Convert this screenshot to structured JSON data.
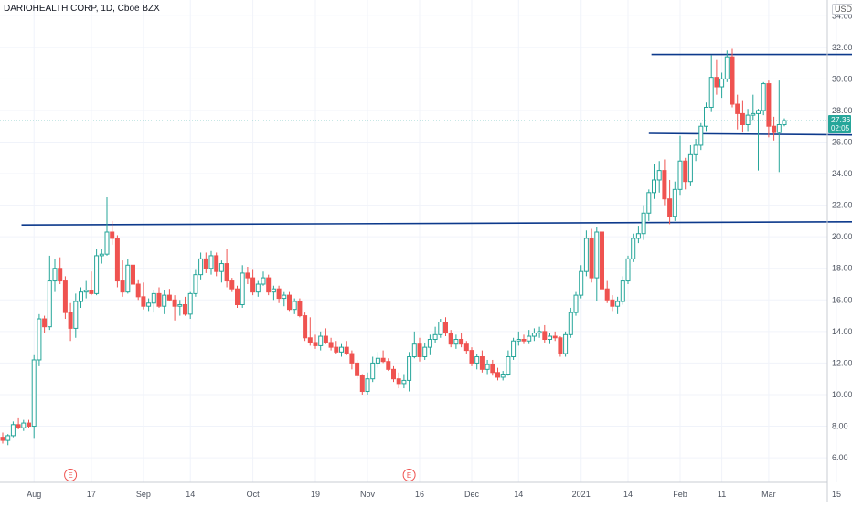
{
  "header": {
    "title": "DARIOHEALTH CORP, 1D, Cboe BZX",
    "currency_button": "USD"
  },
  "last_price": {
    "value": "27.36",
    "countdown": "02:05"
  },
  "colors": {
    "up": "#26a69a",
    "down": "#ef5350",
    "line": "#0d3a8c",
    "label_bg": "#26a69a",
    "event": "#ef5350"
  },
  "chart_data": {
    "type": "candlestick",
    "title": "DARIOHEALTH CORP, 1D, Cboe BZX",
    "xlabel": "",
    "ylabel": "USD",
    "ylim": [
      5.0,
      34.5
    ],
    "grid": true,
    "y_ticks": [
      "6.00",
      "8.00",
      "10.00",
      "12.00",
      "14.00",
      "16.00",
      "18.00",
      "20.00",
      "22.00",
      "24.00",
      "26.00",
      "28.00",
      "30.00",
      "32.00",
      "34.00"
    ],
    "x_ticks": [
      {
        "label": "Aug",
        "index": 6
      },
      {
        "label": "17",
        "index": 17
      },
      {
        "label": "Sep",
        "index": 27
      },
      {
        "label": "14",
        "index": 36
      },
      {
        "label": "Oct",
        "index": 48
      },
      {
        "label": "19",
        "index": 60
      },
      {
        "label": "Nov",
        "index": 70
      },
      {
        "label": "16",
        "index": 80
      },
      {
        "label": "Dec",
        "index": 90
      },
      {
        "label": "14",
        "index": 99
      },
      {
        "label": "2021",
        "index": 111
      },
      {
        "label": "14",
        "index": 120
      },
      {
        "label": "Feb",
        "index": 130
      },
      {
        "label": "11",
        "index": 138
      },
      {
        "label": "Mar",
        "index": 147
      },
      {
        "label": "15",
        "index": 160
      }
    ],
    "events": [
      {
        "label": "E",
        "index": 13
      },
      {
        "label": "E",
        "index": 78
      }
    ],
    "candles": [
      {
        "o": 7.3,
        "h": 7.6,
        "l": 6.9,
        "c": 7.1
      },
      {
        "o": 7.1,
        "h": 7.5,
        "l": 6.8,
        "c": 7.4
      },
      {
        "o": 7.4,
        "h": 8.3,
        "l": 7.3,
        "c": 8.1
      },
      {
        "o": 8.1,
        "h": 8.5,
        "l": 7.8,
        "c": 7.9
      },
      {
        "o": 7.9,
        "h": 8.4,
        "l": 7.7,
        "c": 8.2
      },
      {
        "o": 8.2,
        "h": 8.4,
        "l": 7.9,
        "c": 8.0
      },
      {
        "o": 8.0,
        "h": 12.5,
        "l": 7.2,
        "c": 12.2
      },
      {
        "o": 12.2,
        "h": 15.1,
        "l": 11.8,
        "c": 14.8
      },
      {
        "o": 14.8,
        "h": 15.0,
        "l": 13.9,
        "c": 14.3
      },
      {
        "o": 14.3,
        "h": 18.8,
        "l": 14.1,
        "c": 17.2
      },
      {
        "o": 17.2,
        "h": 18.6,
        "l": 16.5,
        "c": 18.0
      },
      {
        "o": 18.0,
        "h": 18.7,
        "l": 17.0,
        "c": 17.2
      },
      {
        "o": 17.2,
        "h": 17.5,
        "l": 14.8,
        "c": 15.2
      },
      {
        "o": 15.2,
        "h": 15.8,
        "l": 13.4,
        "c": 14.2
      },
      {
        "o": 14.2,
        "h": 16.4,
        "l": 13.6,
        "c": 15.9
      },
      {
        "o": 15.9,
        "h": 16.8,
        "l": 15.5,
        "c": 16.5
      },
      {
        "o": 16.5,
        "h": 17.2,
        "l": 16.1,
        "c": 16.6
      },
      {
        "o": 16.6,
        "h": 17.8,
        "l": 16.3,
        "c": 16.4
      },
      {
        "o": 16.4,
        "h": 19.2,
        "l": 16.3,
        "c": 18.8
      },
      {
        "o": 18.8,
        "h": 19.2,
        "l": 18.3,
        "c": 18.9
      },
      {
        "o": 18.9,
        "h": 22.5,
        "l": 18.8,
        "c": 20.3
      },
      {
        "o": 20.3,
        "h": 21.0,
        "l": 19.5,
        "c": 19.9
      },
      {
        "o": 19.9,
        "h": 20.1,
        "l": 16.8,
        "c": 17.2
      },
      {
        "o": 17.2,
        "h": 18.5,
        "l": 16.2,
        "c": 16.5
      },
      {
        "o": 16.5,
        "h": 18.6,
        "l": 16.4,
        "c": 18.2
      },
      {
        "o": 18.2,
        "h": 18.4,
        "l": 16.8,
        "c": 17.0
      },
      {
        "o": 17.0,
        "h": 17.3,
        "l": 16.0,
        "c": 16.2
      },
      {
        "o": 16.2,
        "h": 17.1,
        "l": 15.4,
        "c": 15.6
      },
      {
        "o": 15.6,
        "h": 16.1,
        "l": 15.3,
        "c": 15.8
      },
      {
        "o": 15.8,
        "h": 16.6,
        "l": 15.2,
        "c": 16.4
      },
      {
        "o": 16.4,
        "h": 16.8,
        "l": 15.5,
        "c": 15.6
      },
      {
        "o": 15.6,
        "h": 16.6,
        "l": 15.1,
        "c": 16.3
      },
      {
        "o": 16.3,
        "h": 16.7,
        "l": 15.9,
        "c": 16.0
      },
      {
        "o": 16.0,
        "h": 16.3,
        "l": 14.7,
        "c": 15.6
      },
      {
        "o": 15.6,
        "h": 16.0,
        "l": 15.0,
        "c": 15.7
      },
      {
        "o": 15.7,
        "h": 16.2,
        "l": 15.0,
        "c": 15.1
      },
      {
        "o": 15.1,
        "h": 16.5,
        "l": 14.8,
        "c": 16.4
      },
      {
        "o": 16.4,
        "h": 17.9,
        "l": 16.2,
        "c": 17.6
      },
      {
        "o": 17.6,
        "h": 19.0,
        "l": 17.3,
        "c": 18.6
      },
      {
        "o": 18.6,
        "h": 19.0,
        "l": 17.7,
        "c": 18.0
      },
      {
        "o": 18.0,
        "h": 19.1,
        "l": 17.6,
        "c": 18.8
      },
      {
        "o": 18.8,
        "h": 19.0,
        "l": 17.5,
        "c": 17.8
      },
      {
        "o": 17.8,
        "h": 18.5,
        "l": 17.1,
        "c": 18.3
      },
      {
        "o": 18.3,
        "h": 19.2,
        "l": 16.8,
        "c": 17.2
      },
      {
        "o": 17.2,
        "h": 17.4,
        "l": 16.5,
        "c": 16.7
      },
      {
        "o": 16.7,
        "h": 16.9,
        "l": 15.5,
        "c": 15.7
      },
      {
        "o": 15.7,
        "h": 18.2,
        "l": 15.5,
        "c": 17.7
      },
      {
        "o": 17.7,
        "h": 18.1,
        "l": 17.0,
        "c": 17.4
      },
      {
        "o": 17.4,
        "h": 17.9,
        "l": 16.3,
        "c": 16.5
      },
      {
        "o": 16.5,
        "h": 17.2,
        "l": 16.2,
        "c": 17.0
      },
      {
        "o": 17.0,
        "h": 17.8,
        "l": 16.9,
        "c": 17.4
      },
      {
        "o": 17.4,
        "h": 17.6,
        "l": 16.3,
        "c": 16.5
      },
      {
        "o": 16.5,
        "h": 16.9,
        "l": 16.0,
        "c": 16.7
      },
      {
        "o": 16.7,
        "h": 16.9,
        "l": 15.8,
        "c": 16.1
      },
      {
        "o": 16.1,
        "h": 16.5,
        "l": 15.6,
        "c": 16.3
      },
      {
        "o": 16.3,
        "h": 16.5,
        "l": 15.3,
        "c": 15.4
      },
      {
        "o": 15.4,
        "h": 16.1,
        "l": 15.1,
        "c": 15.9
      },
      {
        "o": 15.9,
        "h": 16.1,
        "l": 14.9,
        "c": 15.0
      },
      {
        "o": 15.0,
        "h": 15.2,
        "l": 13.4,
        "c": 13.6
      },
      {
        "o": 13.6,
        "h": 14.9,
        "l": 13.1,
        "c": 13.3
      },
      {
        "o": 13.3,
        "h": 13.8,
        "l": 12.9,
        "c": 13.1
      },
      {
        "o": 13.1,
        "h": 14.0,
        "l": 12.8,
        "c": 13.7
      },
      {
        "o": 13.7,
        "h": 14.2,
        "l": 13.2,
        "c": 13.3
      },
      {
        "o": 13.3,
        "h": 13.6,
        "l": 12.8,
        "c": 13.0
      },
      {
        "o": 13.0,
        "h": 13.4,
        "l": 12.6,
        "c": 12.7
      },
      {
        "o": 12.7,
        "h": 13.2,
        "l": 12.4,
        "c": 13.0
      },
      {
        "o": 13.0,
        "h": 13.4,
        "l": 12.5,
        "c": 12.6
      },
      {
        "o": 12.6,
        "h": 12.8,
        "l": 11.6,
        "c": 12.0
      },
      {
        "o": 12.0,
        "h": 12.2,
        "l": 11.0,
        "c": 11.2
      },
      {
        "o": 11.2,
        "h": 11.3,
        "l": 10.0,
        "c": 10.2
      },
      {
        "o": 10.2,
        "h": 11.4,
        "l": 10.0,
        "c": 11.0
      },
      {
        "o": 11.0,
        "h": 12.4,
        "l": 10.8,
        "c": 12.0
      },
      {
        "o": 12.0,
        "h": 12.7,
        "l": 11.7,
        "c": 12.3
      },
      {
        "o": 12.3,
        "h": 12.8,
        "l": 12.0,
        "c": 12.1
      },
      {
        "o": 12.1,
        "h": 12.3,
        "l": 11.5,
        "c": 11.6
      },
      {
        "o": 11.6,
        "h": 11.8,
        "l": 10.8,
        "c": 11.0
      },
      {
        "o": 11.0,
        "h": 11.4,
        "l": 10.4,
        "c": 10.7
      },
      {
        "o": 10.7,
        "h": 11.3,
        "l": 10.4,
        "c": 10.9
      },
      {
        "o": 10.9,
        "h": 12.7,
        "l": 10.2,
        "c": 12.4
      },
      {
        "o": 12.4,
        "h": 14.0,
        "l": 12.3,
        "c": 13.2
      },
      {
        "o": 13.2,
        "h": 13.6,
        "l": 12.1,
        "c": 12.4
      },
      {
        "o": 12.4,
        "h": 13.3,
        "l": 12.2,
        "c": 13.0
      },
      {
        "o": 13.0,
        "h": 13.8,
        "l": 12.5,
        "c": 13.5
      },
      {
        "o": 13.5,
        "h": 14.3,
        "l": 13.3,
        "c": 13.8
      },
      {
        "o": 13.8,
        "h": 14.8,
        "l": 13.6,
        "c": 14.6
      },
      {
        "o": 14.6,
        "h": 14.9,
        "l": 13.7,
        "c": 13.9
      },
      {
        "o": 13.9,
        "h": 14.1,
        "l": 13.0,
        "c": 13.2
      },
      {
        "o": 13.2,
        "h": 13.8,
        "l": 12.9,
        "c": 13.5
      },
      {
        "o": 13.5,
        "h": 13.9,
        "l": 13.0,
        "c": 13.2
      },
      {
        "o": 13.2,
        "h": 13.4,
        "l": 12.6,
        "c": 12.8
      },
      {
        "o": 12.8,
        "h": 13.0,
        "l": 11.8,
        "c": 12.0
      },
      {
        "o": 12.0,
        "h": 12.6,
        "l": 11.6,
        "c": 12.4
      },
      {
        "o": 12.4,
        "h": 12.8,
        "l": 11.4,
        "c": 11.6
      },
      {
        "o": 11.6,
        "h": 12.2,
        "l": 11.3,
        "c": 11.9
      },
      {
        "o": 11.9,
        "h": 12.2,
        "l": 11.2,
        "c": 11.4
      },
      {
        "o": 11.4,
        "h": 11.7,
        "l": 10.9,
        "c": 11.1
      },
      {
        "o": 11.1,
        "h": 11.5,
        "l": 10.9,
        "c": 11.3
      },
      {
        "o": 11.3,
        "h": 12.8,
        "l": 11.2,
        "c": 12.4
      },
      {
        "o": 12.4,
        "h": 13.6,
        "l": 12.2,
        "c": 13.4
      },
      {
        "o": 13.4,
        "h": 14.0,
        "l": 13.1,
        "c": 13.5
      },
      {
        "o": 13.5,
        "h": 13.8,
        "l": 13.2,
        "c": 13.4
      },
      {
        "o": 13.4,
        "h": 14.1,
        "l": 13.2,
        "c": 13.7
      },
      {
        "o": 13.7,
        "h": 14.2,
        "l": 13.4,
        "c": 13.9
      },
      {
        "o": 13.9,
        "h": 14.3,
        "l": 13.6,
        "c": 14.0
      },
      {
        "o": 14.0,
        "h": 14.4,
        "l": 13.3,
        "c": 13.5
      },
      {
        "o": 13.5,
        "h": 13.9,
        "l": 13.2,
        "c": 13.7
      },
      {
        "o": 13.7,
        "h": 14.0,
        "l": 13.4,
        "c": 13.6
      },
      {
        "o": 13.6,
        "h": 13.7,
        "l": 12.4,
        "c": 12.6
      },
      {
        "o": 12.6,
        "h": 14.0,
        "l": 12.4,
        "c": 13.8
      },
      {
        "o": 13.8,
        "h": 15.5,
        "l": 13.6,
        "c": 15.2
      },
      {
        "o": 15.2,
        "h": 16.5,
        "l": 15.0,
        "c": 16.3
      },
      {
        "o": 16.3,
        "h": 18.2,
        "l": 16.1,
        "c": 17.8
      },
      {
        "o": 17.8,
        "h": 20.4,
        "l": 17.5,
        "c": 19.9
      },
      {
        "o": 19.9,
        "h": 20.5,
        "l": 17.1,
        "c": 17.4
      },
      {
        "o": 17.4,
        "h": 20.6,
        "l": 15.9,
        "c": 20.3
      },
      {
        "o": 20.3,
        "h": 20.5,
        "l": 16.5,
        "c": 16.7
      },
      {
        "o": 16.7,
        "h": 17.2,
        "l": 15.8,
        "c": 16.0
      },
      {
        "o": 16.0,
        "h": 16.3,
        "l": 15.3,
        "c": 15.6
      },
      {
        "o": 15.6,
        "h": 16.2,
        "l": 15.1,
        "c": 15.9
      },
      {
        "o": 15.9,
        "h": 17.5,
        "l": 15.7,
        "c": 17.2
      },
      {
        "o": 17.2,
        "h": 18.8,
        "l": 17.0,
        "c": 18.6
      },
      {
        "o": 18.6,
        "h": 20.2,
        "l": 18.4,
        "c": 19.9
      },
      {
        "o": 19.9,
        "h": 20.7,
        "l": 19.6,
        "c": 20.2
      },
      {
        "o": 20.2,
        "h": 22.0,
        "l": 19.8,
        "c": 21.5
      },
      {
        "o": 21.5,
        "h": 23.0,
        "l": 21.0,
        "c": 22.8
      },
      {
        "o": 22.8,
        "h": 24.6,
        "l": 22.4,
        "c": 23.6
      },
      {
        "o": 23.6,
        "h": 24.8,
        "l": 22.8,
        "c": 24.2
      },
      {
        "o": 24.2,
        "h": 24.9,
        "l": 22.0,
        "c": 22.4
      },
      {
        "o": 22.4,
        "h": 23.6,
        "l": 20.8,
        "c": 21.3
      },
      {
        "o": 21.3,
        "h": 23.5,
        "l": 21.0,
        "c": 23.0
      },
      {
        "o": 23.0,
        "h": 26.4,
        "l": 22.6,
        "c": 24.8
      },
      {
        "o": 24.8,
        "h": 25.0,
        "l": 23.0,
        "c": 23.5
      },
      {
        "o": 23.5,
        "h": 25.8,
        "l": 23.2,
        "c": 25.2
      },
      {
        "o": 25.2,
        "h": 26.2,
        "l": 24.8,
        "c": 25.8
      },
      {
        "o": 25.8,
        "h": 27.2,
        "l": 25.5,
        "c": 27.0
      },
      {
        "o": 27.0,
        "h": 28.5,
        "l": 26.7,
        "c": 28.2
      },
      {
        "o": 28.2,
        "h": 31.5,
        "l": 27.9,
        "c": 30.1
      },
      {
        "o": 30.1,
        "h": 31.2,
        "l": 29.0,
        "c": 29.5
      },
      {
        "o": 29.5,
        "h": 30.4,
        "l": 28.8,
        "c": 30.0
      },
      {
        "o": 30.0,
        "h": 31.8,
        "l": 29.8,
        "c": 31.4
      },
      {
        "o": 31.4,
        "h": 31.9,
        "l": 28.2,
        "c": 28.4
      },
      {
        "o": 28.4,
        "h": 29.0,
        "l": 26.8,
        "c": 27.8
      },
      {
        "o": 27.8,
        "h": 28.6,
        "l": 26.6,
        "c": 27.1
      },
      {
        "o": 27.1,
        "h": 28.1,
        "l": 26.7,
        "c": 27.7
      },
      {
        "o": 27.7,
        "h": 29.0,
        "l": 27.4,
        "c": 27.8
      },
      {
        "o": 27.8,
        "h": 28.1,
        "l": 24.2,
        "c": 28.0
      },
      {
        "o": 28.0,
        "h": 29.8,
        "l": 27.7,
        "c": 29.7
      },
      {
        "o": 29.7,
        "h": 29.9,
        "l": 26.3,
        "c": 27.0
      },
      {
        "o": 27.0,
        "h": 27.6,
        "l": 26.1,
        "c": 26.6
      },
      {
        "o": 26.6,
        "h": 29.9,
        "l": 24.1,
        "c": 27.1
      },
      {
        "o": 27.1,
        "h": 27.5,
        "l": 27.0,
        "c": 27.36
      }
    ],
    "lines": [
      {
        "x1": 3.6,
        "y1": 20.75,
        "x2": 165,
        "y2": 20.95
      },
      {
        "x1": 124,
        "y1": 26.55,
        "x2": 165,
        "y2": 26.45
      },
      {
        "x1": 124.5,
        "y1": 31.55,
        "x2": 165,
        "y2": 31.55
      }
    ]
  }
}
